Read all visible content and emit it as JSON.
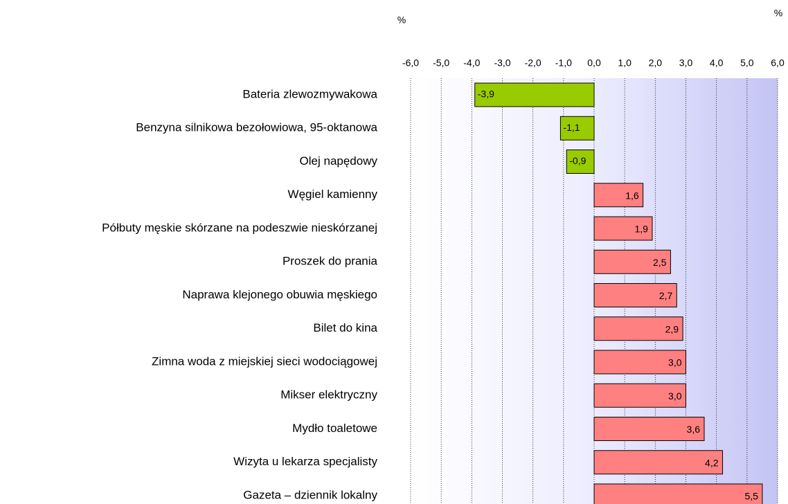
{
  "chart_data": {
    "type": "bar",
    "orientation": "horizontal",
    "annotations": [
      "%",
      "%"
    ],
    "categories": [
      "Bateria zlewozmywakowa",
      "Benzyna silnikowa bezołowiowa, 95-oktanowa",
      "Olej napędowy",
      "Węgiel kamienny",
      "Półbuty męskie skórzane na podeszwie nieskórzanej",
      "Proszek do prania",
      "Naprawa klejonego obuwia męskiego",
      "Bilet do kina",
      "Zimna woda z miejskiej sieci wodociągowej",
      "Mikser elektryczny",
      "Mydło toaletowe",
      "Wizyta u lekarza specjalisty",
      "Gazeta – dziennik lokalny"
    ],
    "values": [
      -3.9,
      -1.1,
      -0.9,
      1.6,
      1.9,
      2.5,
      2.7,
      2.9,
      3.0,
      3.0,
      3.6,
      4.2,
      5.5
    ],
    "value_labels": [
      "-3,9",
      "-1,1",
      "-0,9",
      "1,6",
      "1,9",
      "2,5",
      "2,7",
      "2,9",
      "3,0",
      "3,0",
      "3,6",
      "4,2",
      "5,5"
    ],
    "negative_color": "#99cc00",
    "positive_color": "#ff8080",
    "xlim": [
      -6,
      6
    ],
    "xticks": [
      {
        "value": -6,
        "label": "-6,0"
      },
      {
        "value": -5,
        "label": "-5,0"
      },
      {
        "value": -4,
        "label": "-4,0"
      },
      {
        "value": -3,
        "label": "-3,0"
      },
      {
        "value": -2,
        "label": "-2,0"
      },
      {
        "value": -1,
        "label": "-1,0"
      },
      {
        "value": 0,
        "label": "0,0"
      },
      {
        "value": 1,
        "label": "1,0"
      },
      {
        "value": 2,
        "label": "2,0"
      },
      {
        "value": 3,
        "label": "3,0"
      },
      {
        "value": 4,
        "label": "4,0"
      },
      {
        "value": 5,
        "label": "5,0"
      },
      {
        "value": 6,
        "label": "6,0"
      }
    ],
    "grid": true
  }
}
